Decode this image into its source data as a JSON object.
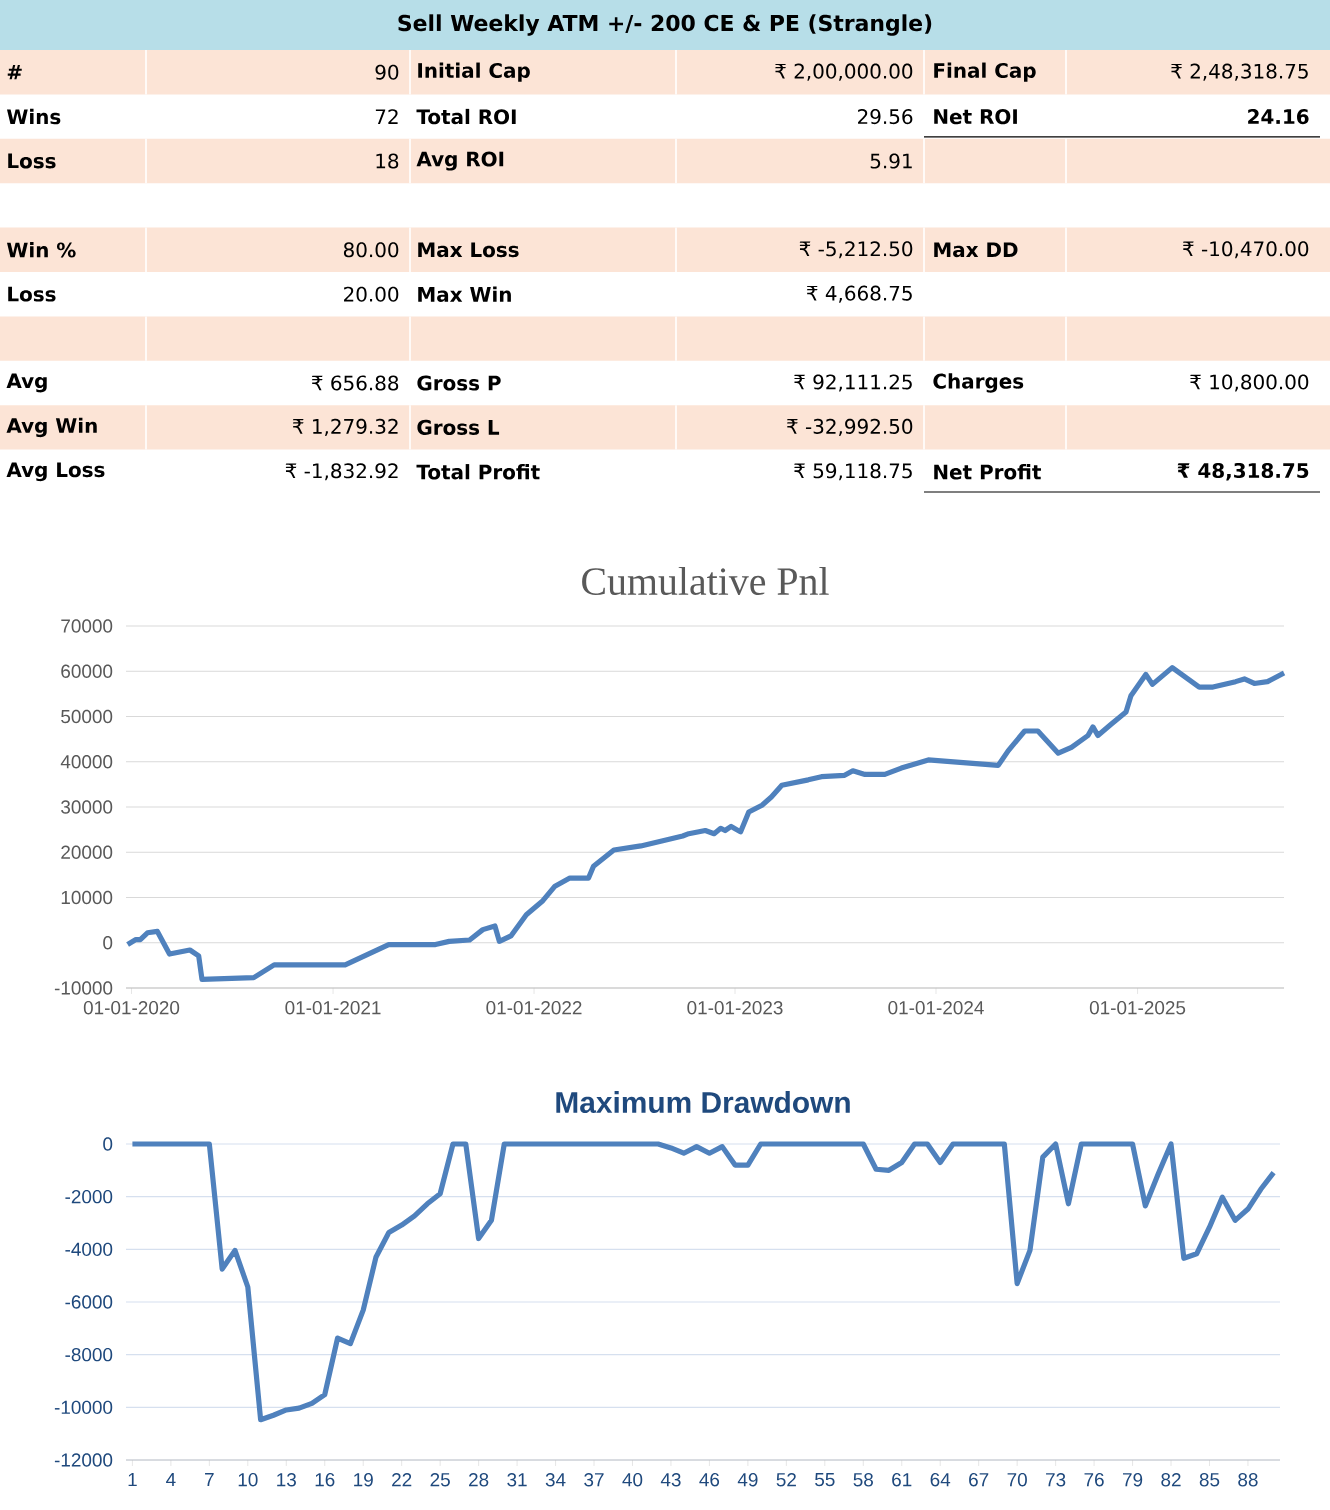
{
  "chart_data": [
    {
      "type": "other",
      "title": "Sell Weekly ATM +/- 200 CE & PE (Strangle)",
      "annotations": [
        "#",
        "90",
        "Initial Cap",
        "₹ 2,00,000.00",
        "Final Cap",
        "₹ 2,48,318.75",
        "Wins",
        "72",
        "Total ROI",
        "29.56",
        "Net ROI",
        "24.16",
        "Loss",
        "18",
        "Avg ROI",
        "5.91",
        "Win %",
        "80.00",
        "Max Loss",
        "₹ -5,212.50",
        "Max DD",
        "₹ -10,470.00",
        "Loss",
        "20.00",
        "Max Win",
        "₹ 4,668.75",
        "Avg",
        "₹ 656.88",
        "Gross P",
        "₹ 92,111.25",
        "Charges",
        "₹ 10,800.00",
        "Avg Win",
        "₹ 1,279.32",
        "Gross L",
        "₹ -32,992.50",
        "Avg Loss",
        "₹ -1,832.92",
        "Total Profit",
        "₹ 59,118.75",
        "Net Profit",
        "₹ 48,318.75"
      ]
    },
    {
      "type": "line",
      "title": "Cumulative Pnl",
      "color": "#4f81bd",
      "grid": "y",
      "x": [
        "2019-12-25",
        "2020-01-09",
        "2020-01-17",
        "2020-01-30",
        "2020-02-17",
        "2020-03-10",
        "2020-04-16",
        "2020-05-02",
        "2020-05-08",
        "2020-08-10",
        "2020-09-16",
        "2021-01-23",
        "2021-04-12",
        "2021-07-06",
        "2021-07-31",
        "2021-09-06",
        "2021-09-30",
        "2021-10-22",
        "2021-10-30",
        "2021-11-20",
        "2021-12-18",
        "2022-01-17",
        "2022-02-08",
        "2022-03-07",
        "2022-04-10",
        "2022-04-19",
        "2022-05-26",
        "2022-07-14",
        "2022-09-28",
        "2022-10-09",
        "2022-11-08",
        "2022-11-24",
        "2022-12-06",
        "2022-12-14",
        "2022-12-25",
        "2023-01-11",
        "2023-01-26",
        "2023-02-19",
        "2023-03-08",
        "2023-03-27",
        "2023-05-14",
        "2023-06-07",
        "2023-07-19",
        "2023-08-03",
        "2023-08-25",
        "2023-09-30",
        "2023-10-30",
        "2023-12-18",
        "2024-04-23",
        "2024-05-11",
        "2024-06-10",
        "2024-07-04",
        "2024-08-10",
        "2024-09-03",
        "2024-10-03",
        "2024-10-12",
        "2024-10-21",
        "2024-11-14",
        "2024-12-11",
        "2024-12-20",
        "2025-01-16",
        "2025-01-28",
        "2025-03-05",
        "2025-04-23",
        "2025-05-18",
        "2025-06-28",
        "2025-07-14",
        "2025-08-01",
        "2025-08-25",
        "2025-09-24"
      ],
      "values": [
        -400,
        700,
        700,
        2200,
        2500,
        -2500,
        -1600,
        -2900,
        -8100,
        -7700,
        -4900,
        -4900,
        -400,
        -400,
        300,
        600,
        2900,
        3700,
        300,
        1500,
        6200,
        9300,
        12500,
        14300,
        14300,
        16900,
        20500,
        21400,
        23600,
        24100,
        24800,
        24100,
        25300,
        24800,
        25700,
        24500,
        28900,
        30400,
        32200,
        34800,
        36000,
        36700,
        37000,
        38000,
        37200,
        37200,
        38600,
        40400,
        39200,
        42400,
        46800,
        46800,
        41900,
        43200,
        45800,
        47700,
        45800,
        48300,
        51000,
        54600,
        59300,
        57100,
        60800,
        56500,
        56500,
        57700,
        58300,
        57300,
        57700,
        59600
      ],
      "xlim": [
        "2019-12-22",
        "2025-09-24"
      ],
      "xticks": [
        {
          "value": "2020-01-01",
          "label": "01-01-2020"
        },
        {
          "value": "2021-01-01",
          "label": "01-01-2021"
        },
        {
          "value": "2022-01-01",
          "label": "01-01-2022"
        },
        {
          "value": "2023-01-01",
          "label": "01-01-2023"
        },
        {
          "value": "2024-01-01",
          "label": "01-01-2024"
        },
        {
          "value": "2025-01-01",
          "label": "01-01-2025"
        }
      ],
      "ylim": [
        -10000,
        70000
      ],
      "yticks": [
        -10000,
        0,
        10000,
        20000,
        30000,
        40000,
        50000,
        60000,
        70000
      ]
    },
    {
      "type": "line",
      "title": "Maximum Drawdown",
      "color": "#4f81bd",
      "grid": "y",
      "categories": [
        "1",
        null,
        null,
        "4",
        null,
        null,
        "7",
        null,
        null,
        "10",
        null,
        null,
        "13",
        null,
        null,
        "16",
        null,
        null,
        "19",
        null,
        null,
        "22",
        null,
        null,
        "25",
        null,
        null,
        "28",
        null,
        null,
        "31",
        null,
        null,
        "34",
        null,
        null,
        "37",
        null,
        null,
        "40",
        null,
        null,
        "43",
        null,
        null,
        "46",
        null,
        null,
        "49",
        null,
        null,
        "52",
        null,
        null,
        "55",
        null,
        null,
        "58",
        null,
        null,
        "61",
        null,
        null,
        "64",
        null,
        null,
        "67",
        null,
        null,
        "70",
        null,
        null,
        "73",
        null,
        null,
        "76",
        null,
        null,
        "79",
        null,
        null,
        "82",
        null,
        null,
        "85",
        null,
        null,
        "88",
        null,
        null
      ],
      "values": [
        0,
        0,
        0,
        0,
        0,
        0,
        0,
        -4750,
        -4040,
        -5430,
        -10470,
        -10300,
        -10100,
        -10030,
        -9850,
        -9520,
        -7370,
        -7580,
        -6310,
        -4290,
        -3360,
        -3080,
        -2730,
        -2270,
        -1890,
        0,
        0,
        -3590,
        -2900,
        0,
        0,
        0,
        0,
        0,
        0,
        0,
        0,
        0,
        0,
        0,
        0,
        0,
        -150,
        -350,
        -100,
        -350,
        -100,
        -800,
        -800,
        0,
        0,
        0,
        0,
        0,
        0,
        0,
        0,
        0,
        -960,
        -1000,
        -700,
        0,
        0,
        -700,
        0,
        0,
        0,
        0,
        0,
        -5300,
        -4040,
        -500,
        0,
        -2270,
        0,
        0,
        0,
        0,
        0,
        -2350,
        -1140,
        0,
        -4340,
        -4170,
        -3160,
        -2020,
        -2900,
        -2470,
        -1720,
        -1090
      ],
      "ylim": [
        -12000,
        0
      ],
      "yticks": [
        -12000,
        -10000,
        -8000,
        -6000,
        -4000,
        -2000,
        0
      ]
    }
  ]
}
